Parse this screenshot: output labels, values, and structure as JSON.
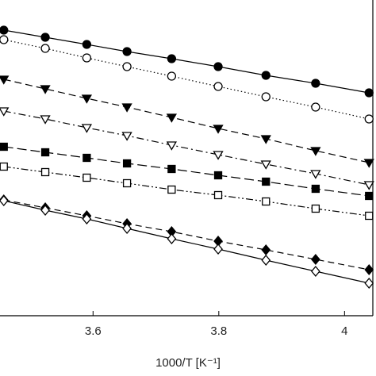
{
  "chart_data": {
    "type": "scatter",
    "x_label": "1000/T [K⁻¹]",
    "x": [
      3.458,
      3.524,
      3.59,
      3.654,
      3.725,
      3.799,
      3.875,
      3.954,
      4.039
    ],
    "xlim": [
      3.452,
      4.045
    ],
    "xticks": [
      3.6,
      3.8,
      4.0
    ],
    "ylim": [
      0,
      39.8
    ],
    "series": [
      {
        "marker": "circle",
        "filled": true,
        "dash": "",
        "color": "#000000",
        "values": [
          36.0,
          35.1,
          34.2,
          33.3,
          32.4,
          31.4,
          30.3,
          29.3,
          28.1
        ]
      },
      {
        "marker": "circle",
        "filled": false,
        "dash": "1.5 3",
        "color": "#000000",
        "values": [
          34.8,
          33.7,
          32.5,
          31.4,
          30.2,
          28.9,
          27.6,
          26.3,
          24.8
        ]
      },
      {
        "marker": "triangle",
        "filled": true,
        "dash": "9 5",
        "color": "#000000",
        "values": [
          29.8,
          28.6,
          27.4,
          26.3,
          25.0,
          23.6,
          22.3,
          20.8,
          19.3
        ]
      },
      {
        "marker": "triangle",
        "filled": false,
        "dash": "9 4 2 4",
        "color": "#000000",
        "values": [
          25.8,
          24.8,
          23.7,
          22.7,
          21.5,
          20.3,
          19.1,
          17.9,
          16.5
        ]
      },
      {
        "marker": "square",
        "filled": true,
        "dash": "12 5",
        "color": "#000000",
        "values": [
          21.3,
          20.6,
          19.9,
          19.2,
          18.5,
          17.7,
          16.9,
          16.0,
          15.1
        ]
      },
      {
        "marker": "square",
        "filled": false,
        "dash": "9 3 2 3 2 3",
        "color": "#000000",
        "values": [
          18.8,
          18.1,
          17.4,
          16.7,
          15.9,
          15.2,
          14.4,
          13.5,
          12.6
        ]
      },
      {
        "marker": "diamond",
        "filled": true,
        "dash": "8 5",
        "color": "#000000",
        "values": [
          14.6,
          13.6,
          12.6,
          11.6,
          10.6,
          9.4,
          8.3,
          7.1,
          5.8
        ]
      },
      {
        "marker": "diamond",
        "filled": false,
        "dash": "",
        "color": "#000000",
        "values": [
          14.5,
          13.3,
          12.2,
          11.0,
          9.7,
          8.4,
          7.0,
          5.6,
          4.1
        ]
      }
    ]
  }
}
